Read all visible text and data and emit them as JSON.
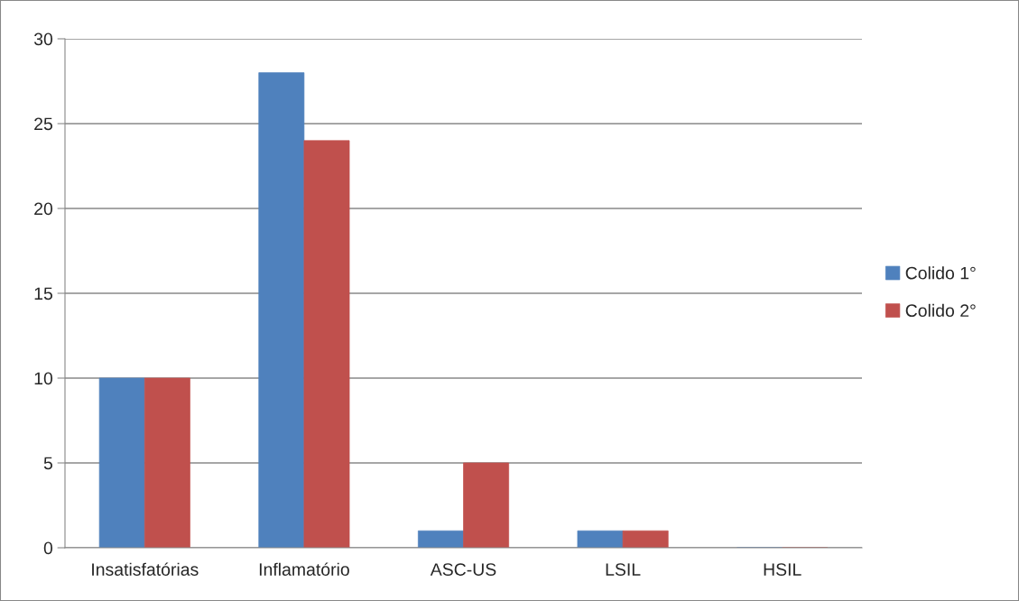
{
  "chart_data": {
    "type": "bar",
    "categories": [
      "Insatisfatórias",
      "Inflamatório",
      "ASC-US",
      "LSIL",
      "HSIL"
    ],
    "series": [
      {
        "name": "Colido 1°",
        "color": "#4f81bd",
        "values": [
          10,
          28,
          1,
          1,
          0
        ]
      },
      {
        "name": "Colido 2°",
        "color": "#c0504d",
        "values": [
          10,
          24,
          5,
          1,
          0
        ]
      }
    ],
    "ylim": [
      0,
      30
    ],
    "yticks": [
      0,
      5,
      10,
      15,
      20,
      25,
      30
    ],
    "grid": "y",
    "legend": "right"
  }
}
